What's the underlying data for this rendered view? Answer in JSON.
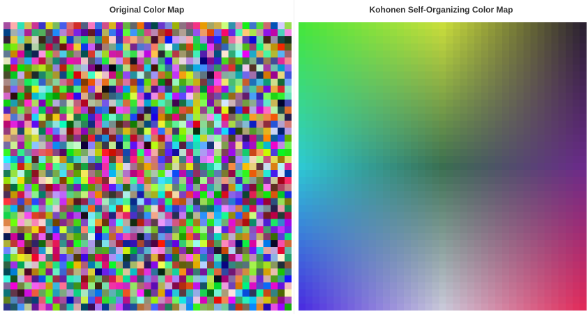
{
  "panels": {
    "original": {
      "title": "Original Color Map"
    },
    "kohonen": {
      "title": "Kohonen Self-Organizing Color Map"
    }
  },
  "grid": {
    "cells_per_side": 41
  },
  "som_corner_colors": {
    "top_left": "#46e63a",
    "top_center": "#c8dc3c",
    "top_right": "#2a2030",
    "center_left": "#2ec8d2",
    "center": "#3a6e50",
    "center_right": "#6a2a8a",
    "bottom_left": "#4a2ee0",
    "bottom_center": "#c8c8d8",
    "bottom_right": "#e02a5a"
  },
  "palette": {
    "background": "#ffffff",
    "title_text": "#333333"
  }
}
